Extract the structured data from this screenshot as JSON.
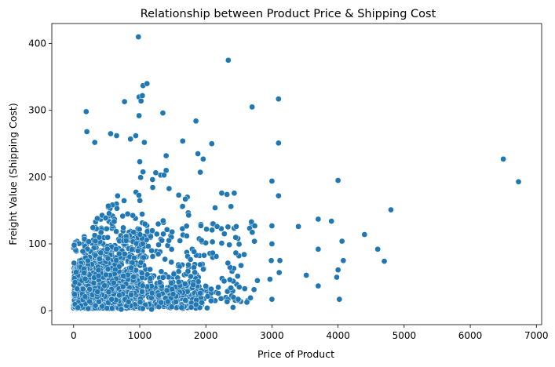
{
  "chart_data": {
    "type": "scatter",
    "title": "Relationship between Product Price & Shipping Cost",
    "xlabel": "Price of Product",
    "ylabel": "Freight Value (Shipping Cost)",
    "xlim": [
      -330,
      7080
    ],
    "ylim": [
      -21,
      430
    ],
    "xticks": [
      0,
      1000,
      2000,
      3000,
      4000,
      5000,
      6000,
      7000
    ],
    "yticks": [
      0,
      100,
      200,
      300,
      400
    ],
    "grid": false,
    "color": "#1f77b4",
    "outliers": [
      [
        980,
        410
      ],
      [
        2340,
        375
      ],
      [
        2700,
        305
      ],
      [
        3100,
        317
      ],
      [
        770,
        313
      ],
      [
        990,
        320
      ],
      [
        1020,
        314
      ],
      [
        1040,
        322
      ],
      [
        1050,
        337
      ],
      [
        1110,
        340
      ],
      [
        190,
        298
      ],
      [
        1350,
        296
      ],
      [
        1850,
        284
      ],
      [
        990,
        292
      ],
      [
        1650,
        254
      ],
      [
        2090,
        250
      ],
      [
        3100,
        251
      ],
      [
        1400,
        232
      ],
      [
        1880,
        235
      ],
      [
        1960,
        227
      ],
      [
        2240,
        176
      ],
      [
        2320,
        174
      ],
      [
        2430,
        176
      ],
      [
        2380,
        156
      ],
      [
        2460,
        126
      ],
      [
        2690,
        133
      ],
      [
        2740,
        127
      ],
      [
        3000,
        194
      ],
      [
        3100,
        172
      ],
      [
        3000,
        127
      ],
      [
        3000,
        100
      ],
      [
        3120,
        75
      ],
      [
        3400,
        126
      ],
      [
        3700,
        137
      ],
      [
        3900,
        134
      ],
      [
        4000,
        195
      ],
      [
        4060,
        104
      ],
      [
        4000,
        61
      ],
      [
        3980,
        50
      ],
      [
        3700,
        92
      ],
      [
        4080,
        75
      ],
      [
        4400,
        114
      ],
      [
        4600,
        92
      ],
      [
        4700,
        74
      ],
      [
        4800,
        151
      ],
      [
        6500,
        227
      ],
      [
        6730,
        193
      ],
      [
        3520,
        53
      ],
      [
        3700,
        37
      ],
      [
        4020,
        17
      ],
      [
        3110,
        57
      ],
      [
        2970,
        47
      ],
      [
        3000,
        17
      ],
      [
        2990,
        75
      ],
      [
        2780,
        45
      ],
      [
        2580,
        84
      ],
      [
        2490,
        17
      ],
      [
        2380,
        34
      ],
      [
        2230,
        18
      ],
      [
        1590,
        43
      ],
      [
        1180,
        2
      ],
      [
        720,
        2
      ],
      [
        200,
        268
      ],
      [
        320,
        252
      ],
      [
        650,
        262
      ],
      [
        560,
        265
      ],
      [
        860,
        257
      ],
      [
        940,
        262
      ],
      [
        1070,
        252
      ],
      [
        1000,
        223
      ],
      [
        1720,
        170
      ],
      [
        1690,
        167
      ],
      [
        1590,
        173
      ],
      [
        1740,
        143
      ],
      [
        2280,
        115
      ],
      [
        2240,
        101
      ],
      [
        2010,
        122
      ],
      [
        2100,
        103
      ],
      [
        2140,
        154
      ],
      [
        1400,
        210
      ]
    ],
    "cluster_seed": 20240515,
    "cluster_count": 3000
  }
}
